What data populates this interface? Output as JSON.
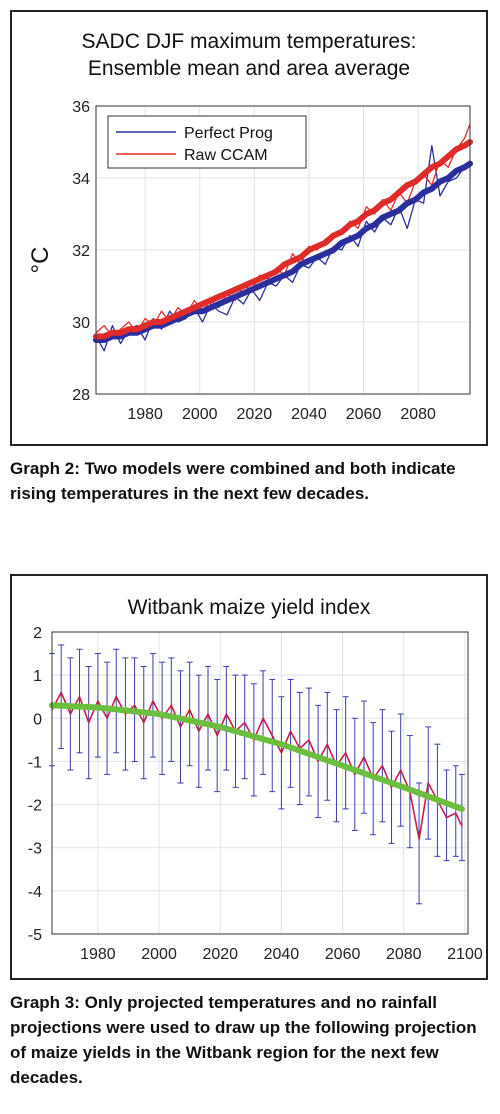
{
  "graphs": [
    {
      "title_lines": [
        "SADC DJF maximum temperatures:",
        "Ensemble mean and area average"
      ],
      "caption": "Graph 2: Two models were combined and both indicate rising temperatures in the next few decades."
    },
    {
      "title_lines": [
        "Witbank maize yield index"
      ],
      "caption": "Graph 3: Only projected temperatures and no rainfall projections were used to draw up the following projection of maize yields in the Witbank region for the next few decades."
    }
  ],
  "chart_data": [
    {
      "type": "line",
      "title": "SADC DJF maximum temperatures: Ensemble mean and area average",
      "ylabel": "°C",
      "xlabel": "",
      "xlim": [
        1962,
        2099
      ],
      "ylim": [
        28,
        36
      ],
      "x_ticks": [
        1980,
        2000,
        2020,
        2040,
        2060,
        2080
      ],
      "y_ticks": [
        28,
        30,
        32,
        34,
        36
      ],
      "grid": true,
      "legend_position": "top-left",
      "years": [
        1962,
        1965,
        1968,
        1971,
        1974,
        1977,
        1980,
        1983,
        1986,
        1989,
        1992,
        1995,
        1998,
        2001,
        2004,
        2007,
        2010,
        2013,
        2016,
        2019,
        2022,
        2025,
        2028,
        2031,
        2034,
        2037,
        2040,
        2043,
        2046,
        2049,
        2052,
        2055,
        2058,
        2061,
        2064,
        2067,
        2070,
        2073,
        2076,
        2079,
        2082,
        2085,
        2088,
        2091,
        2094,
        2097,
        2099
      ],
      "series": [
        {
          "name": "Perfect Prog",
          "color": "#2b2f9e",
          "values": [
            29.6,
            29.2,
            29.9,
            29.4,
            29.8,
            29.9,
            29.5,
            30.1,
            29.8,
            30.3,
            30.0,
            30.1,
            30.4,
            30.0,
            30.5,
            30.3,
            30.2,
            30.7,
            30.5,
            30.9,
            30.6,
            31.1,
            31.0,
            31.3,
            31.1,
            31.6,
            31.5,
            31.8,
            31.6,
            32.1,
            32.0,
            32.4,
            32.1,
            32.8,
            32.5,
            32.9,
            32.7,
            33.2,
            32.6,
            33.4,
            33.3,
            34.9,
            33.5,
            33.9,
            34.0,
            34.3,
            34.4
          ],
          "trend": [
            29.5,
            29.5,
            29.6,
            29.6,
            29.7,
            29.7,
            29.8,
            29.9,
            29.9,
            30.0,
            30.1,
            30.2,
            30.3,
            30.3,
            30.4,
            30.5,
            30.6,
            30.7,
            30.8,
            30.9,
            31.0,
            31.1,
            31.2,
            31.3,
            31.4,
            31.6,
            31.7,
            31.8,
            31.9,
            32.0,
            32.2,
            32.3,
            32.4,
            32.6,
            32.7,
            32.9,
            33.0,
            33.1,
            33.3,
            33.4,
            33.6,
            33.7,
            33.9,
            34.0,
            34.2,
            34.3,
            34.4
          ]
        },
        {
          "name": "Raw CCAM",
          "color": "#e02b2b",
          "values": [
            29.7,
            29.9,
            29.6,
            29.8,
            30.0,
            29.7,
            30.1,
            29.9,
            30.3,
            30.0,
            30.4,
            30.2,
            30.6,
            30.3,
            30.6,
            30.4,
            30.8,
            30.6,
            31.0,
            30.9,
            31.3,
            31.2,
            31.5,
            31.3,
            31.9,
            31.6,
            32.1,
            32.0,
            32.3,
            32.4,
            32.5,
            32.8,
            32.6,
            33.2,
            33.0,
            33.4,
            33.1,
            33.6,
            33.3,
            33.9,
            34.1,
            33.8,
            34.5,
            34.3,
            34.8,
            35.1,
            35.5
          ],
          "trend": [
            29.6,
            29.6,
            29.7,
            29.7,
            29.8,
            29.8,
            29.9,
            30.0,
            30.0,
            30.1,
            30.2,
            30.3,
            30.4,
            30.5,
            30.6,
            30.7,
            30.8,
            30.9,
            31.0,
            31.1,
            31.2,
            31.3,
            31.4,
            31.6,
            31.7,
            31.8,
            32.0,
            32.1,
            32.2,
            32.4,
            32.5,
            32.7,
            32.8,
            33.0,
            33.1,
            33.3,
            33.4,
            33.6,
            33.8,
            33.9,
            34.1,
            34.3,
            34.4,
            34.6,
            34.8,
            34.9,
            35.0
          ]
        }
      ]
    },
    {
      "type": "line",
      "title": "Witbank maize yield index",
      "xlabel": "",
      "ylabel": "",
      "xlim": [
        1965,
        2101
      ],
      "ylim": [
        -5,
        2
      ],
      "x_ticks": [
        1980,
        2000,
        2020,
        2040,
        2060,
        2080,
        2100
      ],
      "y_ticks": [
        -5,
        -4,
        -3,
        -2,
        -1,
        0,
        1,
        2
      ],
      "grid": true,
      "years": [
        1965,
        1968,
        1971,
        1974,
        1977,
        1980,
        1983,
        1986,
        1989,
        1992,
        1995,
        1998,
        2001,
        2004,
        2007,
        2010,
        2013,
        2016,
        2019,
        2022,
        2025,
        2028,
        2031,
        2034,
        2037,
        2040,
        2043,
        2046,
        2049,
        2052,
        2055,
        2058,
        2061,
        2064,
        2067,
        2070,
        2073,
        2076,
        2079,
        2082,
        2085,
        2088,
        2091,
        2094,
        2097,
        2099
      ],
      "series": [
        {
          "name": "",
          "color": "#c21f4a",
          "values": [
            0.2,
            0.6,
            0.1,
            0.5,
            -0.1,
            0.4,
            0.0,
            0.5,
            0.1,
            0.3,
            -0.1,
            0.4,
            0.0,
            0.3,
            -0.2,
            0.2,
            -0.3,
            0.1,
            -0.4,
            0.1,
            -0.3,
            -0.1,
            -0.5,
            0.0,
            -0.4,
            -0.8,
            -0.3,
            -0.7,
            -0.5,
            -1.0,
            -0.6,
            -1.1,
            -0.8,
            -1.3,
            -0.9,
            -1.4,
            -1.1,
            -1.6,
            -1.2,
            -1.7,
            -2.8,
            -1.5,
            -1.9,
            -2.3,
            -2.2,
            -2.5
          ],
          "error_low": [
            -1.1,
            -0.7,
            -1.2,
            -0.8,
            -1.4,
            -0.9,
            -1.3,
            -0.8,
            -1.2,
            -1.0,
            -1.4,
            -0.9,
            -1.3,
            -1.0,
            -1.5,
            -1.1,
            -1.6,
            -1.2,
            -1.7,
            -1.2,
            -1.6,
            -1.4,
            -1.8,
            -1.3,
            -1.7,
            -2.1,
            -1.6,
            -2.0,
            -1.8,
            -2.3,
            -1.9,
            -2.4,
            -2.1,
            -2.6,
            -2.2,
            -2.7,
            -2.4,
            -2.9,
            -2.5,
            -3.0,
            -4.3,
            -2.8,
            -3.2,
            -3.3,
            -3.2,
            -3.3
          ],
          "error_high": [
            1.5,
            1.7,
            1.4,
            1.6,
            1.2,
            1.5,
            1.3,
            1.6,
            1.4,
            1.4,
            1.2,
            1.5,
            1.3,
            1.4,
            1.1,
            1.3,
            1.0,
            1.2,
            0.9,
            1.2,
            1.0,
            1.0,
            0.8,
            1.1,
            0.9,
            0.5,
            0.9,
            0.6,
            0.7,
            0.3,
            0.6,
            0.2,
            0.5,
            0.0,
            0.4,
            -0.1,
            0.2,
            -0.3,
            0.1,
            -0.4,
            -1.5,
            -0.2,
            -0.6,
            -1.2,
            -1.1,
            -1.3
          ]
        },
        {
          "name": "",
          "color": "#6cbf3e",
          "trend_x": [
            1965,
            1980,
            2000,
            2020,
            2040,
            2060,
            2080,
            2099
          ],
          "trend_y": [
            0.3,
            0.25,
            0.1,
            -0.2,
            -0.6,
            -1.1,
            -1.6,
            -2.1
          ]
        }
      ]
    }
  ]
}
